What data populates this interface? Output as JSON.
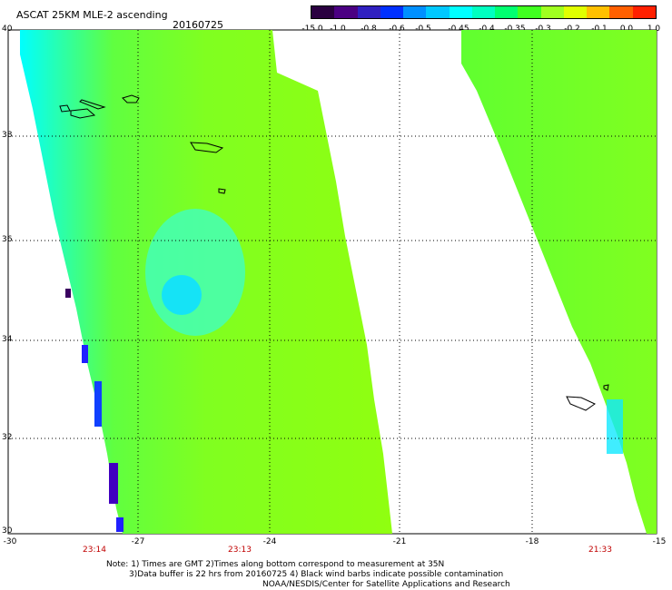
{
  "header": {
    "title": "ASCAT 25KM MLE-2 ascending",
    "date": "20160725"
  },
  "colorbar": {
    "colors": [
      "#2a0040",
      "#4b0082",
      "#3020c0",
      "#0030ff",
      "#0090ff",
      "#00c8ff",
      "#00ffff",
      "#00ffc0",
      "#00ff70",
      "#40ff20",
      "#a0ff20",
      "#e0ff00",
      "#ffc000",
      "#ff6000",
      "#ff2000"
    ],
    "labels": [
      "-15.0",
      "-1.0",
      "-0.8",
      "-0.6",
      "-0.5",
      "-0.45",
      "-0.4",
      "-0.35",
      "-0.3",
      "-0.2",
      "-0.1",
      "0.0",
      "1.0"
    ]
  },
  "axes": {
    "lat_labels": [
      "40",
      "38",
      "36",
      "34",
      "32",
      "30"
    ],
    "lon_labels": [
      "-30",
      "-27",
      "-24",
      "-21",
      "-18",
      "-15"
    ],
    "time_labels": [
      "23:14",
      "23:13",
      "21:33"
    ]
  },
  "notes": {
    "line1": "Note: 1) Times are GMT 2)Times along bottom correspond to measurement at 35N",
    "line2": "3)Data buffer is 22 hrs from 20160725 4) Black wind barbs indicate possible contamination",
    "line3": "NOAA/NESDIS/Center for Satellite Applications and Research"
  }
}
